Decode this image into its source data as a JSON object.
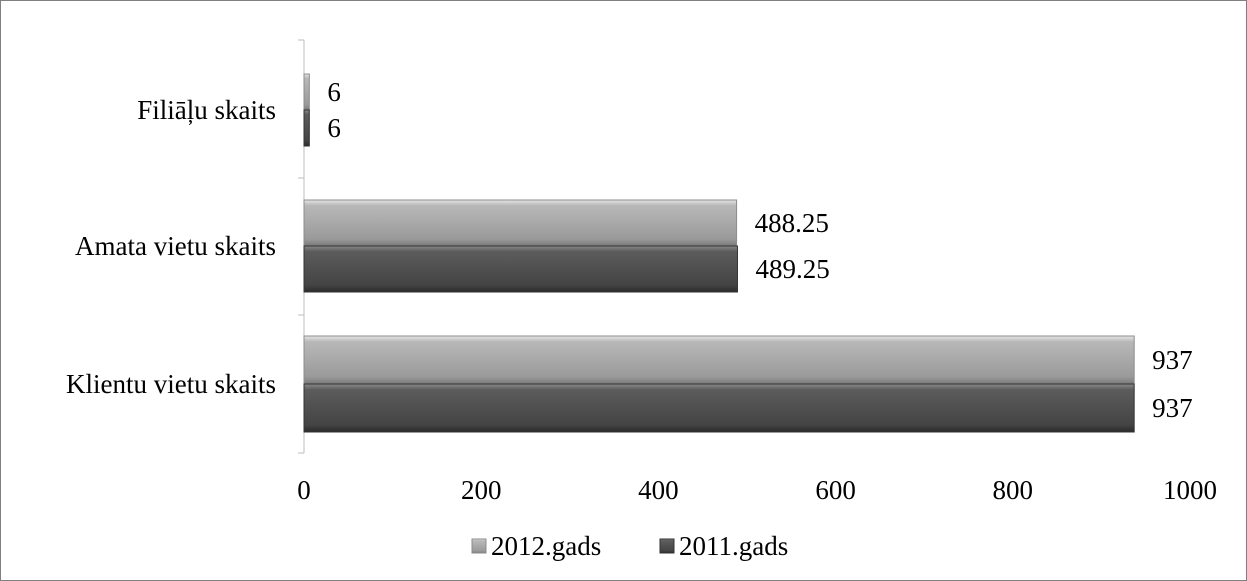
{
  "chart_data": {
    "type": "bar",
    "orientation": "horizontal",
    "categories": [
      "Klientu vietu skaits",
      "Amata vietu skaits",
      "Filiāļu skaits"
    ],
    "series": [
      {
        "name": "2012.gads",
        "values": [
          937,
          488.25,
          6
        ],
        "labels": [
          "937",
          "488.25",
          "6"
        ],
        "color": "#9a9a9a"
      },
      {
        "name": "2011.gads",
        "values": [
          937,
          489.25,
          6
        ],
        "labels": [
          "937",
          "489.25",
          "6"
        ],
        "color": "#4a4a4a"
      }
    ],
    "xlim": [
      0,
      1000
    ],
    "xticks": [
      "0",
      "200",
      "400",
      "600",
      "800",
      "1000"
    ],
    "grid": false,
    "legend_position": "bottom",
    "title": "",
    "xlabel": "",
    "ylabel": ""
  }
}
